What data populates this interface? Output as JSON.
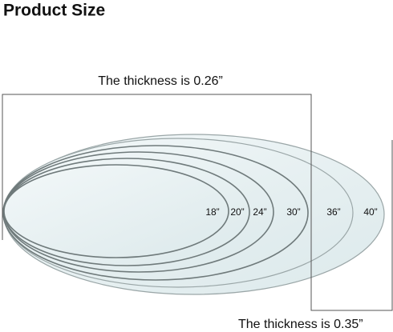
{
  "header": {
    "title": "Product Size"
  },
  "annotations": {
    "top": "The thickness is 0.26”",
    "bottom": "The thickness is 0.35”"
  },
  "sizes": [
    "18”",
    "20”",
    "24”",
    "30”",
    "36”",
    "40”"
  ]
}
